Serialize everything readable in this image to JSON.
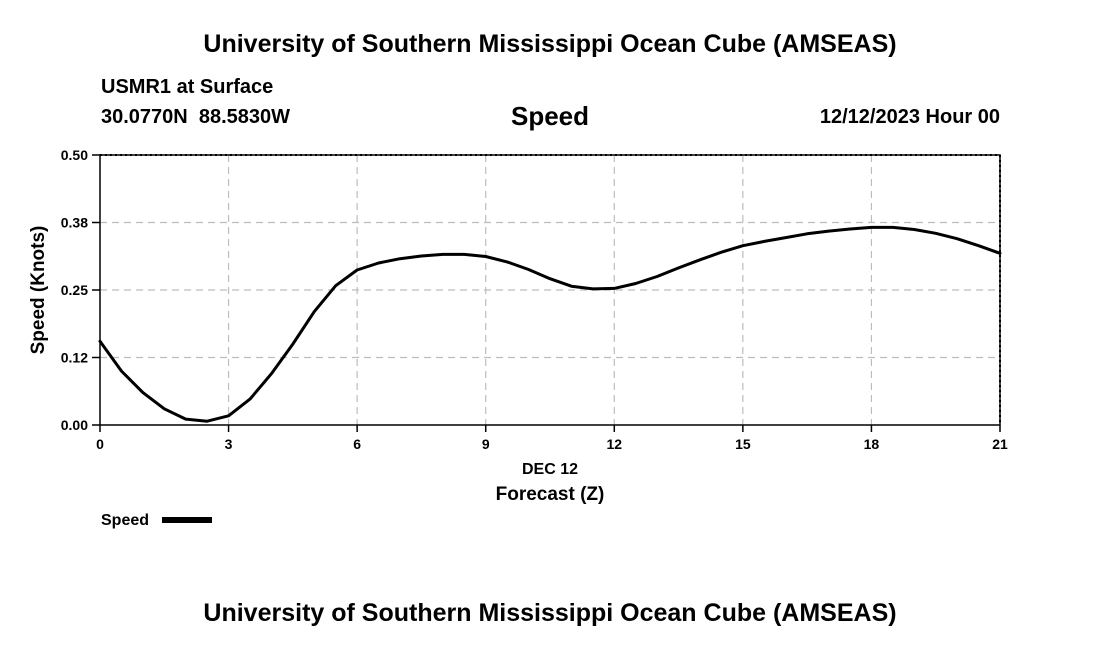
{
  "header": {
    "title": "University of Southern Mississippi Ocean Cube (AMSEAS)",
    "station": "USMR1 at Surface",
    "coordinates": "30.0770N  88.5830W",
    "variable": "Speed",
    "datetime": "12/12/2023 Hour 00"
  },
  "footer": {
    "title": "University of Southern Mississippi Ocean Cube (AMSEAS)"
  },
  "chart_data": {
    "type": "line",
    "title": "Speed",
    "xlabel": "Forecast (Z)",
    "xlabel_date": "DEC 12",
    "ylabel": "Speed (Knots)",
    "xlim": [
      0,
      21
    ],
    "ylim": [
      0,
      0.5
    ],
    "x_ticks": [
      0,
      3,
      6,
      9,
      12,
      15,
      18,
      21
    ],
    "x_tick_labels": [
      "0",
      "3",
      "6",
      "9",
      "12",
      "15",
      "18",
      "21"
    ],
    "y_ticks": [
      0,
      0.125,
      0.25,
      0.375,
      0.5
    ],
    "y_tick_labels": [
      "0.00",
      "0.12",
      "0.25",
      "0.38",
      "0.50"
    ],
    "grid": true,
    "legend": "bottom-left",
    "series": [
      {
        "name": "Speed",
        "color": "#000000",
        "x": [
          0,
          0.5,
          1,
          1.5,
          2,
          2.5,
          3,
          3.5,
          4,
          4.5,
          5,
          5.5,
          6,
          6.5,
          7,
          7.5,
          8,
          8.5,
          9,
          9.5,
          10,
          10.5,
          11,
          11.5,
          12,
          12.5,
          13,
          13.5,
          14,
          14.5,
          15,
          15.5,
          16,
          16.5,
          17,
          17.5,
          18,
          18.5,
          19,
          19.5,
          20,
          20.5,
          21
        ],
        "y": [
          0.155,
          0.1,
          0.06,
          0.03,
          0.011,
          0.007,
          0.017,
          0.048,
          0.095,
          0.15,
          0.21,
          0.258,
          0.287,
          0.3,
          0.308,
          0.313,
          0.316,
          0.316,
          0.312,
          0.302,
          0.288,
          0.271,
          0.257,
          0.252,
          0.253,
          0.262,
          0.275,
          0.291,
          0.306,
          0.32,
          0.332,
          0.34,
          0.347,
          0.354,
          0.359,
          0.363,
          0.366,
          0.366,
          0.362,
          0.355,
          0.345,
          0.332,
          0.318
        ]
      }
    ]
  }
}
